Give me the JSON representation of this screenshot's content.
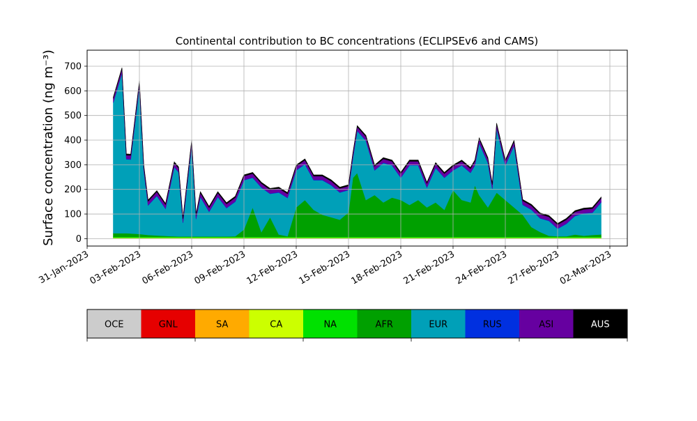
{
  "chart_data": {
    "type": "area",
    "title": "Continental contribution to BC concentrations (ECLIPSEv6 and CAMS)",
    "xlabel": "",
    "ylabel": "Surface concentration (ng m⁻³)",
    "xlim": [
      "2023-01-31",
      "2023-03-03"
    ],
    "ylim": [
      -30,
      765
    ],
    "yticks": [
      0,
      100,
      200,
      300,
      400,
      500,
      600,
      700
    ],
    "xtick_labels": [
      "31-Jan-2023",
      "03-Feb-2023",
      "06-Feb-2023",
      "09-Feb-2023",
      "12-Feb-2023",
      "15-Feb-2023",
      "18-Feb-2023",
      "21-Feb-2023",
      "24-Feb-2023",
      "27-Feb-2023",
      "02-Mar-2023"
    ],
    "xtick_dates": [
      "2023-01-31",
      "2023-02-03",
      "2023-02-06",
      "2023-02-09",
      "2023-02-12",
      "2023-02-15",
      "2023-02-18",
      "2023-02-21",
      "2023-02-24",
      "2023-02-27",
      "2023-03-02"
    ],
    "grid": true,
    "stacked": true,
    "x": [
      "2023-02-01 12:00",
      "2023-02-02 00:00",
      "2023-02-02 06:00",
      "2023-02-02 12:00",
      "2023-02-03 00:00",
      "2023-02-03 06:00",
      "2023-02-03 12:00",
      "2023-02-04 00:00",
      "2023-02-04 12:00",
      "2023-02-05 00:00",
      "2023-02-05 06:00",
      "2023-02-05 12:00",
      "2023-02-06 00:00",
      "2023-02-06 06:00",
      "2023-02-06 12:00",
      "2023-02-07 00:00",
      "2023-02-07 12:00",
      "2023-02-08 00:00",
      "2023-02-08 12:00",
      "2023-02-09 00:00",
      "2023-02-09 12:00",
      "2023-02-10 00:00",
      "2023-02-10 12:00",
      "2023-02-11 00:00",
      "2023-02-11 12:00",
      "2023-02-12 00:00",
      "2023-02-12 12:00",
      "2023-02-13 00:00",
      "2023-02-13 12:00",
      "2023-02-14 00:00",
      "2023-02-14 12:00",
      "2023-02-15 00:00",
      "2023-02-15 06:00",
      "2023-02-15 12:00",
      "2023-02-16 00:00",
      "2023-02-16 12:00",
      "2023-02-17 00:00",
      "2023-02-17 12:00",
      "2023-02-18 00:00",
      "2023-02-18 12:00",
      "2023-02-19 00:00",
      "2023-02-19 12:00",
      "2023-02-20 00:00",
      "2023-02-20 12:00",
      "2023-02-21 00:00",
      "2023-02-21 12:00",
      "2023-02-22 00:00",
      "2023-02-22 06:00",
      "2023-02-22 12:00",
      "2023-02-23 00:00",
      "2023-02-23 06:00",
      "2023-02-23 12:00",
      "2023-02-24 00:00",
      "2023-02-24 12:00",
      "2023-02-25 00:00",
      "2023-02-25 12:00",
      "2023-02-26 00:00",
      "2023-02-26 12:00",
      "2023-02-27 00:00",
      "2023-02-27 12:00",
      "2023-02-28 00:00",
      "2023-02-28 12:00",
      "2023-03-01 00:00",
      "2023-03-01 12:00"
    ],
    "series": [
      {
        "name": "OCE",
        "color": "#cccccc",
        "values": [
          2,
          2,
          2,
          2,
          2,
          2,
          2,
          2,
          2,
          2,
          2,
          2,
          2,
          2,
          2,
          2,
          2,
          2,
          2,
          2,
          2,
          2,
          2,
          2,
          2,
          2,
          2,
          2,
          2,
          2,
          2,
          2,
          2,
          2,
          2,
          2,
          2,
          2,
          2,
          2,
          2,
          2,
          2,
          2,
          2,
          2,
          2,
          2,
          2,
          2,
          2,
          2,
          2,
          2,
          2,
          2,
          2,
          2,
          2,
          2,
          2,
          2,
          2,
          2
        ]
      },
      {
        "name": "GNL",
        "color": "#e60000",
        "values": [
          0,
          0,
          0,
          0,
          0,
          0,
          0,
          0,
          0,
          0,
          0,
          0,
          0,
          0,
          0,
          0,
          0,
          0,
          0,
          0,
          0,
          0,
          0,
          0,
          0,
          0,
          0,
          0,
          0,
          0,
          0,
          0,
          0,
          0,
          0,
          0,
          0,
          0,
          0,
          0,
          0,
          0,
          0,
          0,
          0,
          0,
          0,
          0,
          0,
          0,
          0,
          0,
          0,
          0,
          0,
          0,
          0,
          0,
          0,
          0,
          0,
          0,
          0,
          0
        ]
      },
      {
        "name": "SA",
        "color": "#ffaa00",
        "values": [
          0,
          0,
          0,
          0,
          0,
          0,
          0,
          0,
          0,
          0,
          0,
          0,
          0,
          0,
          0,
          0,
          0,
          0,
          0,
          0,
          0,
          0,
          0,
          0,
          0,
          0,
          0,
          0,
          0,
          0,
          0,
          0,
          0,
          0,
          0,
          0,
          0,
          0,
          0,
          0,
          0,
          0,
          0,
          0,
          0,
          0,
          0,
          0,
          0,
          0,
          0,
          0,
          0,
          0,
          0,
          0,
          0,
          0,
          0,
          0,
          0,
          0,
          0,
          0
        ]
      },
      {
        "name": "CA",
        "color": "#ccff00",
        "values": [
          2,
          2,
          2,
          2,
          2,
          2,
          2,
          2,
          2,
          2,
          2,
          2,
          2,
          2,
          2,
          2,
          2,
          2,
          2,
          2,
          2,
          2,
          2,
          2,
          2,
          2,
          2,
          2,
          2,
          2,
          2,
          2,
          2,
          2,
          2,
          2,
          2,
          2,
          2,
          2,
          2,
          2,
          2,
          2,
          2,
          2,
          2,
          2,
          2,
          2,
          2,
          2,
          2,
          2,
          2,
          2,
          2,
          2,
          2,
          2,
          2,
          2,
          2,
          2
        ]
      },
      {
        "name": "NA",
        "color": "#00e100",
        "values": [
          3,
          3,
          3,
          3,
          3,
          3,
          3,
          3,
          3,
          3,
          3,
          3,
          3,
          3,
          3,
          3,
          3,
          3,
          3,
          3,
          3,
          3,
          3,
          3,
          3,
          3,
          3,
          3,
          3,
          3,
          3,
          3,
          3,
          3,
          3,
          3,
          3,
          3,
          3,
          3,
          3,
          3,
          3,
          3,
          3,
          3,
          3,
          3,
          3,
          3,
          3,
          3,
          3,
          3,
          3,
          3,
          3,
          3,
          3,
          3,
          3,
          3,
          3,
          3
        ]
      },
      {
        "name": "AFR",
        "color": "#00a000",
        "values": [
          15,
          15,
          15,
          14,
          12,
          10,
          8,
          6,
          4,
          3,
          2,
          2,
          2,
          2,
          2,
          2,
          2,
          2,
          3,
          30,
          120,
          20,
          80,
          10,
          3,
          120,
          150,
          110,
          90,
          80,
          70,
          100,
          240,
          260,
          150,
          170,
          140,
          160,
          150,
          130,
          150,
          120,
          140,
          110,
          190,
          150,
          140,
          210,
          170,
          120,
          150,
          180,
          150,
          120,
          90,
          40,
          20,
          5,
          3,
          3,
          10,
          5,
          8,
          10
        ]
      },
      {
        "name": "EUR",
        "color": "#00a0b8",
        "values": [
          530,
          650,
          300,
          300,
          600,
          260,
          120,
          160,
          110,
          280,
          260,
          55,
          370,
          70,
          160,
          100,
          160,
          115,
          140,
          200,
          120,
          180,
          95,
          170,
          155,
          150,
          145,
          120,
          140,
          130,
          110,
          90,
          80,
          170,
          240,
          100,
          160,
          130,
          90,
          160,
          140,
          80,
          140,
          130,
          80,
          140,
          120,
          80,
          210,
          180,
          45,
          260,
          140,
          250,
          40,
          70,
          55,
          60,
          30,
          50,
          75,
          90,
          90,
          130
        ]
      },
      {
        "name": "RUS",
        "color": "#0030e0",
        "values": [
          2,
          2,
          2,
          2,
          2,
          2,
          2,
          2,
          2,
          2,
          2,
          2,
          2,
          2,
          2,
          2,
          2,
          2,
          2,
          2,
          2,
          2,
          2,
          2,
          2,
          2,
          2,
          2,
          2,
          2,
          2,
          2,
          2,
          2,
          2,
          2,
          2,
          2,
          2,
          2,
          2,
          2,
          2,
          2,
          2,
          2,
          2,
          2,
          2,
          2,
          2,
          2,
          2,
          2,
          2,
          2,
          2,
          2,
          2,
          2,
          2,
          2,
          2,
          2
        ]
      },
      {
        "name": "ASI",
        "color": "#6600a0",
        "values": [
          15,
          15,
          15,
          15,
          15,
          15,
          15,
          15,
          15,
          15,
          15,
          15,
          15,
          15,
          15,
          15,
          15,
          15,
          15,
          15,
          15,
          15,
          15,
          15,
          15,
          15,
          15,
          15,
          15,
          15,
          15,
          15,
          15,
          15,
          15,
          15,
          15,
          15,
          15,
          15,
          15,
          15,
          15,
          15,
          15,
          15,
          15,
          15,
          15,
          15,
          15,
          15,
          15,
          15,
          15,
          15,
          15,
          15,
          15,
          15,
          15,
          15,
          15,
          15
        ]
      },
      {
        "name": "AUS",
        "color": "#000000",
        "values": [
          5,
          5,
          5,
          5,
          5,
          5,
          5,
          5,
          5,
          5,
          5,
          5,
          5,
          5,
          5,
          5,
          5,
          5,
          5,
          5,
          5,
          5,
          5,
          5,
          5,
          5,
          5,
          5,
          5,
          5,
          5,
          5,
          5,
          5,
          5,
          5,
          5,
          5,
          5,
          5,
          5,
          5,
          5,
          5,
          5,
          5,
          5,
          5,
          5,
          5,
          5,
          5,
          5,
          5,
          5,
          5,
          5,
          5,
          5,
          5,
          5,
          5,
          5,
          5
        ]
      }
    ],
    "legend": {
      "placement": "bottom",
      "items": [
        {
          "label": "OCE",
          "color": "#cccccc"
        },
        {
          "label": "GNL",
          "color": "#e60000"
        },
        {
          "label": "SA",
          "color": "#ffaa00"
        },
        {
          "label": "CA",
          "color": "#ccff00"
        },
        {
          "label": "NA",
          "color": "#00e100"
        },
        {
          "label": "AFR",
          "color": "#00a000"
        },
        {
          "label": "EUR",
          "color": "#00a0b8"
        },
        {
          "label": "RUS",
          "color": "#0030e0"
        },
        {
          "label": "ASI",
          "color": "#6600a0"
        },
        {
          "label": "AUS",
          "color": "#000000"
        }
      ]
    }
  }
}
